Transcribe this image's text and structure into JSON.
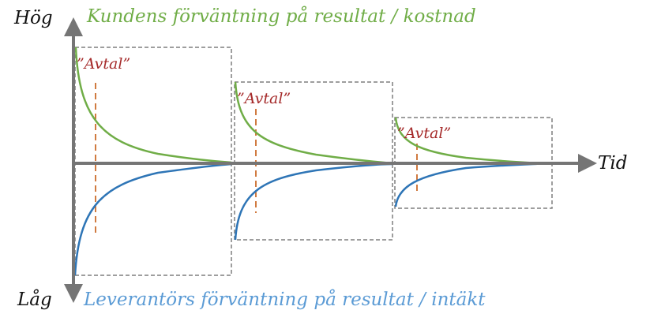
{
  "axis": {
    "y_top_label": "Hög",
    "y_bottom_label": "Låg",
    "x_label": "Tid"
  },
  "legend": {
    "customer_curve_label": "Kundens förväntning på resultat / kostnad",
    "supplier_curve_label": "Leverantörs förväntning på resultat / intäkt"
  },
  "agreement_label": "”Avtal”",
  "colors": {
    "customer_curve": "#70ad47",
    "supplier_curve": "#2e75b6",
    "supplier_text": "#5b9bd5",
    "agreement": "#a52a2a",
    "agreement_marker": "#c55a11",
    "axis": "#757575",
    "frame": "#7f7f7f"
  },
  "phases": [
    {
      "id": 1,
      "label": "”Avtal”"
    },
    {
      "id": 2,
      "label": "”Avtal”"
    },
    {
      "id": 3,
      "label": "”Avtal”"
    }
  ]
}
